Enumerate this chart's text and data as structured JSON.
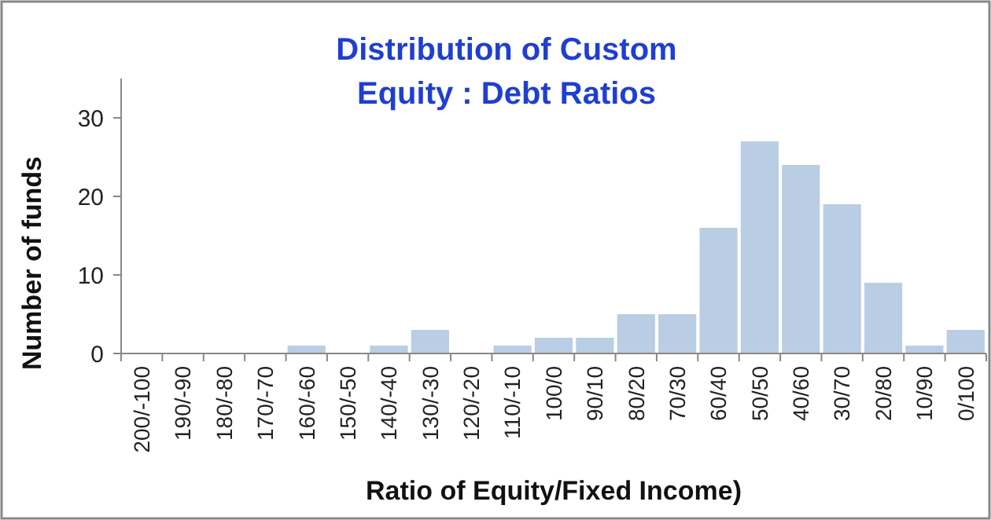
{
  "chart_data": {
    "type": "bar",
    "title": "Distribution of Custom Equity : Debt Ratios",
    "xlabel": "Ratio of Equity/Fixed Income)",
    "ylabel": "Number of funds",
    "categories": [
      "200/-100",
      "190/-90",
      "180/-80",
      "170/-70",
      "160/-60",
      "150/-50",
      "140/-40",
      "130/-30",
      "120/-20",
      "110/-10",
      "100/0",
      "90/10",
      "80/20",
      "70/30",
      "60/40",
      "50/50",
      "40/60",
      "30/70",
      "20/80",
      "10/90",
      "0/100"
    ],
    "values": [
      0,
      0,
      0,
      0,
      1,
      0,
      1,
      3,
      0,
      1,
      2,
      2,
      5,
      5,
      16,
      27,
      24,
      19,
      9,
      1,
      3
    ],
    "color": "#b9cde5",
    "ylim": [
      0,
      35
    ],
    "yticks": [
      0,
      10,
      20,
      30
    ],
    "grid": false
  }
}
